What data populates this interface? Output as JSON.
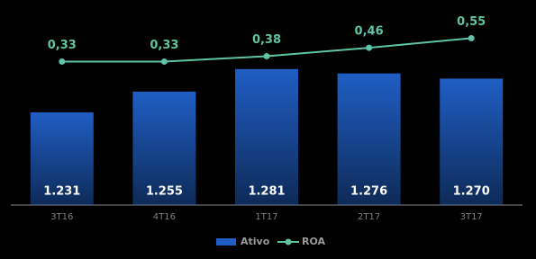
{
  "chart_data": {
    "type": "bar-line",
    "categories": [
      "3T16",
      "4T16",
      "1T17",
      "2T17",
      "3T17"
    ],
    "series": [
      {
        "name": "Ativo",
        "type": "bar",
        "color": "#1f5ec4",
        "values": [
          1231,
          1255,
          1281,
          1276,
          1270
        ],
        "value_labels": [
          "1.231",
          "1.255",
          "1.281",
          "1.276",
          "1.270"
        ]
      },
      {
        "name": "ROA",
        "type": "line",
        "axis": "y2",
        "color": "#5fc4a6",
        "values": [
          0.33,
          0.33,
          0.38,
          0.46,
          0.55
        ],
        "value_labels": [
          "0,33",
          "0,33",
          "0,38",
          "0,46",
          "0,55"
        ]
      }
    ],
    "ylim": [
      1124,
      1340
    ],
    "y2lim": [
      -1.02,
      0.74
    ],
    "legend": "bottom"
  }
}
